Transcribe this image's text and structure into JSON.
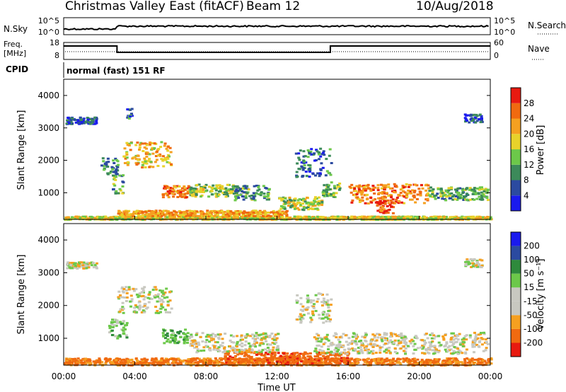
{
  "header": {
    "station": "Christmas Valley East (fitACF)",
    "beam": "Beam 12",
    "date": "10/Aug/2018"
  },
  "params": {
    "nsky_label": "N.Sky",
    "nsky_ticks": [
      "10^5",
      "10^0"
    ],
    "nsearch_label": "N.Search",
    "freq_label": "Freq.",
    "freq_unit": "[MHz]",
    "freq_ticks": [
      "18",
      "8"
    ],
    "nave_label": "Nave",
    "nave_ticks": [
      "60",
      "0"
    ],
    "cpid_label": "CPID",
    "cpid_value": "normal (fast) 151 RF"
  },
  "colors": {
    "power": [
      "#1a1aee",
      "#2b4aa0",
      "#3c8a5a",
      "#6cc84a",
      "#e8d22a",
      "#f5a020",
      "#f06a10",
      "#e81a10"
    ],
    "velocity": [
      "#e81a10",
      "#f06a10",
      "#f5a020",
      "#c8c8c0",
      "#c8c8c0",
      "#6cc84a",
      "#2e8a3c",
      "#2b4aa0",
      "#1a1aee"
    ]
  },
  "chart_data": [
    {
      "type": "heatmap",
      "panel": "power",
      "ylabel": "Slant Range [km]",
      "yticks": [
        1000,
        2000,
        3000,
        4000
      ],
      "ylim": [
        180,
        4500
      ],
      "xlim": [
        0,
        24
      ],
      "colorbar_label": "Power [dB]",
      "colorbar_ticks": [
        "4",
        "8",
        "12",
        "16",
        "20",
        "24",
        "28"
      ],
      "colorbar_range": [
        0,
        32
      ],
      "regions": [
        {
          "t0": 0.0,
          "t1": 24.0,
          "r0": 200,
          "r1": 300,
          "level": 18
        },
        {
          "t0": 3.0,
          "t1": 12.5,
          "r0": 300,
          "r1": 480,
          "level": 22
        },
        {
          "t0": 5.5,
          "t1": 7.0,
          "r0": 880,
          "r1": 1250,
          "level": 24
        },
        {
          "t0": 7.0,
          "t1": 9.5,
          "r0": 900,
          "r1": 1300,
          "level": 15
        },
        {
          "t0": 9.5,
          "t1": 11.5,
          "r0": 800,
          "r1": 1250,
          "level": 11
        },
        {
          "t0": 3.3,
          "t1": 6.0,
          "r0": 1800,
          "r1": 2600,
          "level": 20
        },
        {
          "t0": 2.7,
          "t1": 3.3,
          "r0": 1000,
          "r1": 1600,
          "level": 12
        },
        {
          "t0": 2.0,
          "t1": 3.0,
          "r0": 1600,
          "r1": 2100,
          "level": 10
        },
        {
          "t0": 12.0,
          "t1": 14.5,
          "r0": 500,
          "r1": 900,
          "level": 16
        },
        {
          "t0": 14.5,
          "t1": 15.5,
          "r0": 900,
          "r1": 1400,
          "level": 14
        },
        {
          "t0": 13.0,
          "t1": 15.0,
          "r0": 1500,
          "r1": 2400,
          "level": 8
        },
        {
          "t0": 16.0,
          "t1": 20.5,
          "r0": 700,
          "r1": 1300,
          "level": 24
        },
        {
          "t0": 17.5,
          "t1": 18.5,
          "r0": 400,
          "r1": 800,
          "level": 27
        },
        {
          "t0": 20.5,
          "t1": 23.8,
          "r0": 800,
          "r1": 1200,
          "level": 12
        },
        {
          "t0": 0.1,
          "t1": 1.8,
          "r0": 3150,
          "r1": 3350,
          "level": 6
        },
        {
          "t0": 22.5,
          "t1": 23.5,
          "r0": 3200,
          "r1": 3450,
          "level": 6
        },
        {
          "t0": 3.5,
          "t1": 3.8,
          "r0": 3300,
          "r1": 3700,
          "level": 8
        }
      ]
    },
    {
      "type": "heatmap",
      "panel": "velocity",
      "ylabel": "Slant Range [km]",
      "xlabel": "Time UT",
      "yticks": [
        1000,
        2000,
        3000,
        4000
      ],
      "xticks": [
        "00:00",
        "04:00",
        "08:00",
        "12:00",
        "16:00",
        "20:00",
        "00:00"
      ],
      "ylim": [
        180,
        4500
      ],
      "xlim": [
        0,
        24
      ],
      "colorbar_label": "Velocity [m s⁻¹]",
      "colorbar_ticks": [
        "-200",
        "-100",
        "-50",
        "-15",
        "15",
        "50",
        "100",
        "200"
      ],
      "regions": [
        {
          "t0": 0.0,
          "t1": 24.0,
          "r0": 200,
          "r1": 420,
          "v": -60
        },
        {
          "t0": 9.0,
          "t1": 16.0,
          "r0": 250,
          "r1": 600,
          "v": -80
        },
        {
          "t0": 3.0,
          "t1": 6.0,
          "r0": 1800,
          "r1": 2600,
          "v": 0
        },
        {
          "t0": 5.5,
          "t1": 7.0,
          "r0": 880,
          "r1": 1300,
          "v": 40
        },
        {
          "t0": 7.0,
          "t1": 12.0,
          "r0": 600,
          "r1": 1200,
          "v": 0
        },
        {
          "t0": 2.5,
          "t1": 3.5,
          "r0": 1000,
          "r1": 1600,
          "v": 30
        },
        {
          "t0": 14.0,
          "t1": 23.8,
          "r0": 550,
          "r1": 1200,
          "v": 0
        },
        {
          "t0": 13.0,
          "t1": 15.0,
          "r0": 1500,
          "r1": 2400,
          "v": 0
        },
        {
          "t0": 0.1,
          "t1": 1.8,
          "r0": 3150,
          "r1": 3350,
          "v": 0
        },
        {
          "t0": 22.5,
          "t1": 23.5,
          "r0": 3200,
          "r1": 3450,
          "v": 0
        }
      ]
    }
  ]
}
